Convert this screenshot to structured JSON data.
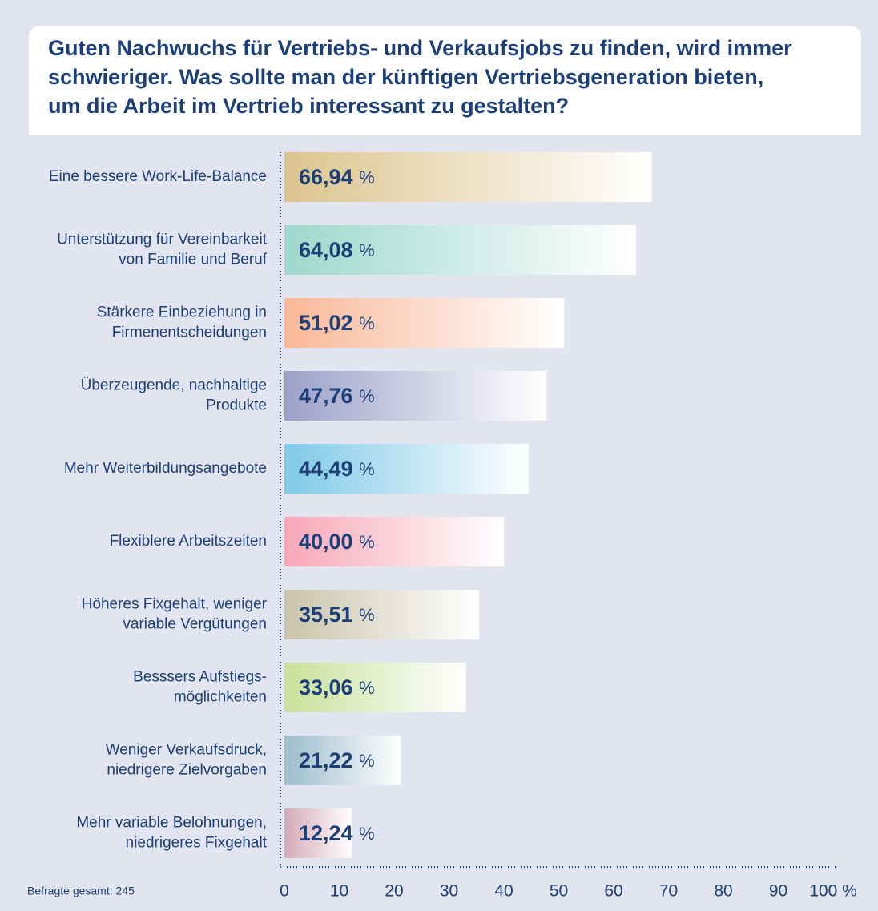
{
  "chart_data": {
    "type": "barh",
    "title": "Guten Nachwuchs für Vertriebs- und Verkaufsjobs zu finden, wird immer\nschwieriger. Was sollte man der künftigen Vertriebsgeneration bieten,\num die Arbeit im Vertrieb interessant zu gestalten?",
    "categories": [
      "Eine bessere Work-Life-Balance",
      "Unterstützung für Vereinbarkeit\nvon Familie und Beruf",
      "Stärkere Einbeziehung in\nFirmenentscheidungen",
      "Überzeugende, nachhaltige\nProdukte",
      "Mehr Weiterbildungsangebote",
      "Flexiblere Arbeitszeiten",
      "Höheres Fixgehalt, weniger\nvariable Vergütungen",
      "Besssers Aufstiegs-\nmöglichkeiten",
      "Weniger Verkaufsdruck,\nniedrigere Zielvorgaben",
      "Mehr variable Belohnungen,\nniedrigeres Fixgehalt"
    ],
    "values": [
      66.94,
      64.08,
      51.02,
      47.76,
      44.49,
      40.0,
      35.51,
      33.06,
      21.22,
      12.24
    ],
    "value_labels": [
      "66,94 %",
      "64,08 %",
      "51,02 %",
      "47,76 %",
      "44,49 %",
      "40,00 %",
      "35,51 %",
      "33,06 %",
      "21,22 %",
      "12,24 %"
    ],
    "colors": [
      "#dcc48e",
      "#9ed8cc",
      "#f9b898",
      "#9da1c8",
      "#7fc9e8",
      "#f7a7b7",
      "#c9c4aa",
      "#c9e09a",
      "#9dbccb",
      "#d4a9b8"
    ],
    "xlim": [
      0,
      100
    ],
    "xticks": [
      0,
      10,
      20,
      30,
      40,
      50,
      60,
      70,
      80,
      90,
      {
        "value": 100,
        "label": "100 %"
      }
    ],
    "note": "Befragte gesamt: 245"
  }
}
